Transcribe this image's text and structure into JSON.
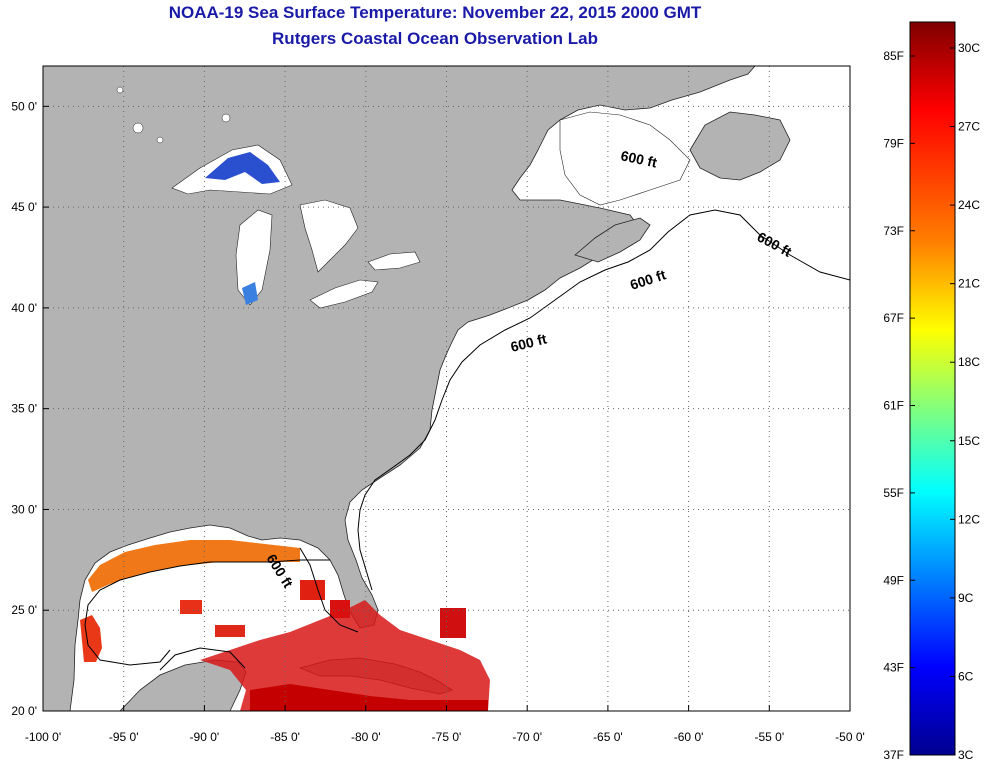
{
  "title": "NOAA-19 Sea Surface Temperature:  November 22, 2015 2000 GMT",
  "subtitle": "Rutgers Coastal Ocean Observation Lab",
  "map": {
    "lon_range": [
      -100,
      -50
    ],
    "lat_range": [
      20,
      52
    ],
    "lon_ticks": [
      {
        "value": -100,
        "label": "-100 0'"
      },
      {
        "value": -95,
        "label": "-95 0'"
      },
      {
        "value": -90,
        "label": "-90 0'"
      },
      {
        "value": -85,
        "label": "-85 0'"
      },
      {
        "value": -80,
        "label": "-80 0'"
      },
      {
        "value": -75,
        "label": "-75 0'"
      },
      {
        "value": -70,
        "label": "-70 0'"
      },
      {
        "value": -65,
        "label": "-65 0'"
      },
      {
        "value": -60,
        "label": "-60 0'"
      },
      {
        "value": -55,
        "label": "-55 0'"
      },
      {
        "value": -50,
        "label": "-50 0'"
      }
    ],
    "lat_ticks": [
      {
        "value": 50,
        "label": "50 0'"
      },
      {
        "value": 45,
        "label": "45 0'"
      },
      {
        "value": 40,
        "label": "40 0'"
      },
      {
        "value": 35,
        "label": "35 0'"
      },
      {
        "value": 30,
        "label": "30 0'"
      },
      {
        "value": 25,
        "label": "25 0'"
      },
      {
        "value": 20,
        "label": "20 0'"
      }
    ],
    "contour_labels": [
      "600 ft",
      "600 ft",
      "600 ft",
      "600 ft",
      "600 ft"
    ],
    "colors": {
      "land": "#b3b3b3",
      "ocean_no_data": "#ffffff",
      "gulf_north": "#f07818",
      "gulf_warm": "#d81010",
      "caribbean": "#c00000",
      "lake_cold": "#2a5de0"
    }
  },
  "colorbar": {
    "title_top_f": "85F",
    "title_bottom_f": "37F",
    "top_c": "30C",
    "bottom_c": "3C",
    "f_labels": [
      "85F",
      "79F",
      "73F",
      "67F",
      "61F",
      "55F",
      "49F",
      "43F",
      "37F"
    ],
    "c_labels": [
      "30C",
      "27C",
      "24C",
      "21C",
      "18C",
      "15C",
      "12C",
      "9C",
      "6C",
      "3C"
    ],
    "gradient": [
      "#7f0000",
      "#ff0000",
      "#ff7f00",
      "#ffff00",
      "#7fff7f",
      "#00ffff",
      "#007fff",
      "#0000ff",
      "#00008f"
    ]
  }
}
